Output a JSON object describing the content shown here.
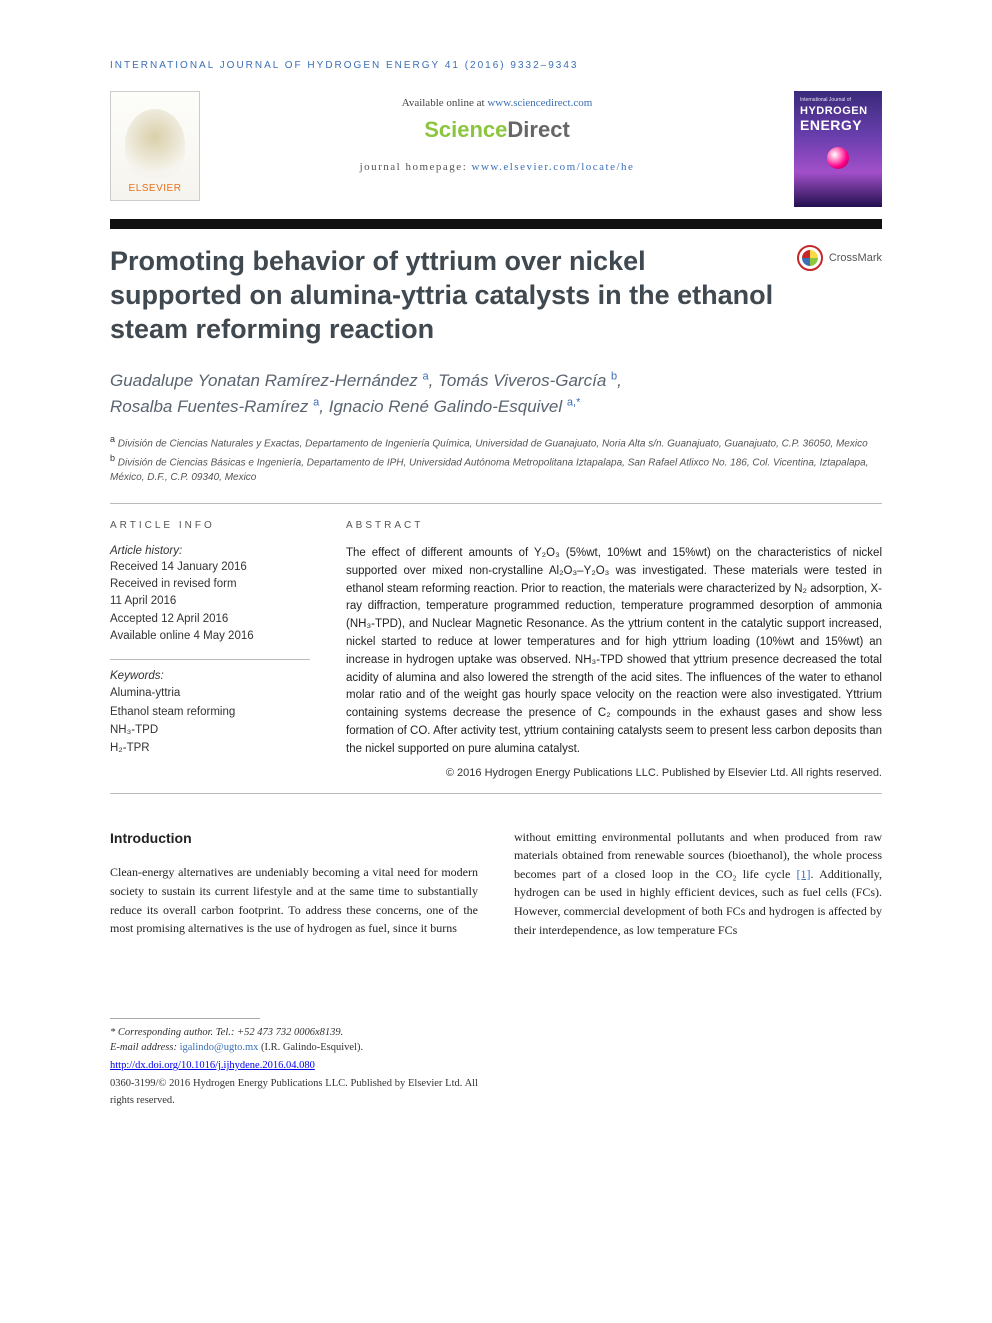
{
  "running_head": "INTERNATIONAL JOURNAL OF HYDROGEN ENERGY 41 (2016) 9332–9343",
  "masthead": {
    "available_prefix": "Available online at ",
    "available_link": "www.sciencedirect.com",
    "sd_sci": "Science",
    "sd_dir": "Direct",
    "elsevier": "ELSEVIER",
    "jhome_prefix": "journal homepage: ",
    "jhome_link": "www.elsevier.com/locate/he",
    "cover_small": "International Journal of",
    "cover_hy": "HYDROGEN",
    "cover_en": "ENERGY"
  },
  "title": "Promoting behavior of yttrium over nickel supported on alumina-yttria catalysts in the ethanol steam reforming reaction",
  "crossmark": "CrossMark",
  "authors_html": "Guadalupe Yonatan Ramírez-Hernández <sup>a</sup>, Tomás Viveros-García <sup>b</sup>, Rosalba Fuentes-Ramírez <sup>a</sup>, Ignacio René Galindo-Esquivel <sup>a,*</sup>",
  "authors": [
    {
      "name": "Guadalupe Yonatan Ramírez-Hernández",
      "aff": "a"
    },
    {
      "name": "Tomás Viveros-García",
      "aff": "b"
    },
    {
      "name": "Rosalba Fuentes-Ramírez",
      "aff": "a"
    },
    {
      "name": "Ignacio René Galindo-Esquivel",
      "aff": "a,*"
    }
  ],
  "affiliations": {
    "a": "División de Ciencias Naturales y Exactas, Departamento de Ingeniería Química, Universidad de Guanajuato, Noria Alta s/n. Guanajuato, Guanajuato, C.P. 36050, Mexico",
    "b": "División de Ciencias Básicas e Ingeniería, Departamento de IPH, Universidad Autónoma Metropolitana Iztapalapa, San Rafael Atlixco No. 186, Col. Vicentina, Iztapalapa, México, D.F., C.P. 09340, Mexico"
  },
  "article_info": {
    "heading": "ARTICLE INFO",
    "history_label": "Article history:",
    "received": "Received 14 January 2016",
    "revised1": "Received in revised form",
    "revised2": "11 April 2016",
    "accepted": "Accepted 12 April 2016",
    "online": "Available online 4 May 2016",
    "keywords_label": "Keywords:",
    "keywords": [
      "Alumina-yttria",
      "Ethanol steam reforming",
      "NH₃-TPD",
      "H₂-TPR"
    ]
  },
  "abstract": {
    "heading": "ABSTRACT",
    "body": "The effect of different amounts of Y₂O₃ (5%wt, 10%wt and 15%wt) on the characteristics of nickel supported over mixed non-crystalline Al₂O₃–Y₂O₃ was investigated. These materials were tested in ethanol steam reforming reaction. Prior to reaction, the materials were characterized by N₂ adsorption, X-ray diffraction, temperature programmed reduction, temperature programmed desorption of ammonia (NH₃-TPD), and Nuclear Magnetic Resonance. As the yttrium content in the catalytic support increased, nickel started to reduce at lower temperatures and for high yttrium loading (10%wt and 15%wt) an increase in hydrogen uptake was observed. NH₃-TPD showed that yttrium presence decreased the total acidity of alumina and also lowered the strength of the acid sites. The influences of the water to ethanol molar ratio and of the weight gas hourly space velocity on the reaction were also investigated. Yttrium containing systems decrease the presence of C₂ compounds in the exhaust gases and show less formation of CO. After activity test, yttrium containing catalysts seem to present less carbon deposits than the nickel supported on pure alumina catalyst.",
    "copyright": "© 2016 Hydrogen Energy Publications LLC. Published by Elsevier Ltd. All rights reserved."
  },
  "intro": {
    "heading": "Introduction",
    "col1": "Clean-energy alternatives are undeniably becoming a vital need for modern society to sustain its current lifestyle and at the same time to substantially reduce its overall carbon footprint. To address these concerns, one of the most promising alternatives is the use of hydrogen as fuel, since it burns",
    "col2a": "without emitting environmental pollutants and when produced from raw materials obtained from renewable sources (bioethanol), the whole process becomes part of a closed loop in the CO₂ life cycle ",
    "col2cite": "[1]",
    "col2b": ". Additionally, hydrogen can be used in highly efficient devices, such as fuel cells (FCs). However, commercial development of both FCs and hydrogen is affected by their interdependence, as low temperature FCs"
  },
  "footer": {
    "corr": "* Corresponding author. Tel.: +52 473 732 0006x8139.",
    "email_label": "E-mail address: ",
    "email": "igalindo@ugto.mx",
    "email_who": " (I.R. Galindo-Esquivel).",
    "doi": "http://dx.doi.org/10.1016/j.ijhydene.2016.04.080",
    "copy": "0360-3199/© 2016 Hydrogen Energy Publications LLC. Published by Elsevier Ltd. All rights reserved."
  },
  "colors": {
    "link": "#3b6fb5",
    "orange": "#e9711c",
    "green": "#8cc63f",
    "title_gray": "#404850"
  }
}
